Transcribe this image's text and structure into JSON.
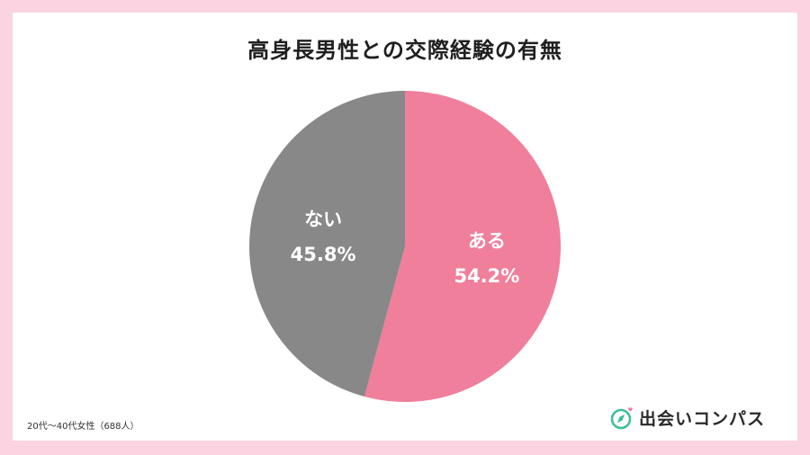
{
  "chart_data": {
    "type": "pie",
    "title": "高身長男性との交際経験の有無",
    "slices": [
      {
        "label": "ある",
        "value": 54.2,
        "value_text": "54.2%",
        "color": "#f07f9b"
      },
      {
        "label": "ない",
        "value": 45.8,
        "value_text": "45.8%",
        "color": "#888888"
      }
    ],
    "start": "12 o'clock",
    "direction": "clockwise",
    "footnote": "20代〜40代女性（688人）"
  },
  "brand": {
    "name": "出会いコンパス",
    "accent": "#3cbf94",
    "heart": "#f07f9b",
    "icon": "compass-icon"
  },
  "colors": {
    "frame": "#fcd3e1",
    "background": "#ffffff"
  }
}
